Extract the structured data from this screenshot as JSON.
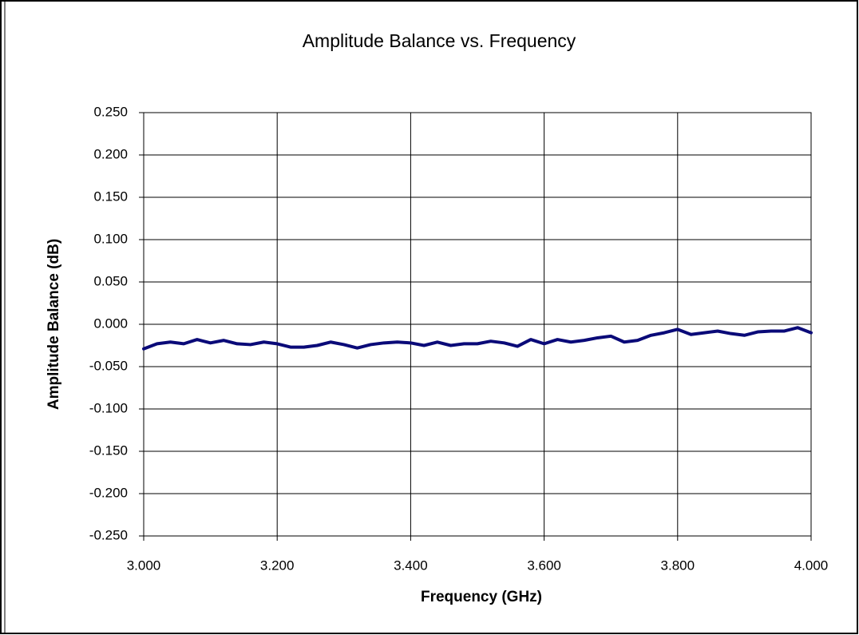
{
  "chart_data": {
    "type": "line",
    "title": "Amplitude Balance vs. Frequency",
    "x_label": "Frequency (GHz)",
    "y_label": "Amplitude Balance (dB)",
    "x": [
      3.0,
      3.02,
      3.04,
      3.06,
      3.08,
      3.1,
      3.12,
      3.14,
      3.16,
      3.18,
      3.2,
      3.22,
      3.24,
      3.26,
      3.28,
      3.3,
      3.32,
      3.34,
      3.36,
      3.38,
      3.4,
      3.42,
      3.44,
      3.46,
      3.48,
      3.5,
      3.52,
      3.54,
      3.56,
      3.58,
      3.6,
      3.62,
      3.64,
      3.66,
      3.68,
      3.7,
      3.72,
      3.74,
      3.76,
      3.78,
      3.8,
      3.82,
      3.84,
      3.86,
      3.88,
      3.9,
      3.92,
      3.94,
      3.96,
      3.98,
      4.0
    ],
    "series": [
      {
        "name": "Amplitude Balance",
        "color": "#0a0a78",
        "values": [
          -0.029,
          -0.023,
          -0.021,
          -0.023,
          -0.018,
          -0.022,
          -0.019,
          -0.023,
          -0.024,
          -0.021,
          -0.023,
          -0.027,
          -0.027,
          -0.025,
          -0.021,
          -0.024,
          -0.028,
          -0.024,
          -0.022,
          -0.021,
          -0.022,
          -0.025,
          -0.021,
          -0.025,
          -0.023,
          -0.023,
          -0.02,
          -0.022,
          -0.026,
          -0.018,
          -0.023,
          -0.018,
          -0.021,
          -0.019,
          -0.016,
          -0.014,
          -0.021,
          -0.019,
          -0.013,
          -0.01,
          -0.006,
          -0.012,
          -0.01,
          -0.008,
          -0.011,
          -0.013,
          -0.009,
          -0.008,
          -0.008,
          -0.004,
          -0.01
        ]
      }
    ],
    "xlim": [
      3.0,
      4.0
    ],
    "xticks": [
      {
        "value": 3.0,
        "label": "3.000"
      },
      {
        "value": 3.2,
        "label": "3.200"
      },
      {
        "value": 3.4,
        "label": "3.400"
      },
      {
        "value": 3.6,
        "label": "3.600"
      },
      {
        "value": 3.8,
        "label": "3.800"
      },
      {
        "value": 4.0,
        "label": "4.000"
      }
    ],
    "ylim": [
      -0.25,
      0.25
    ],
    "yticks": [
      {
        "value": 0.25,
        "label": "0.250"
      },
      {
        "value": 0.2,
        "label": "0.200"
      },
      {
        "value": 0.15,
        "label": "0.150"
      },
      {
        "value": 0.1,
        "label": "0.100"
      },
      {
        "value": 0.05,
        "label": "0.050"
      },
      {
        "value": 0,
        "label": "0.000"
      },
      {
        "value": -0.05,
        "label": "-0.050"
      },
      {
        "value": -0.1,
        "label": "-0.100"
      },
      {
        "value": -0.15,
        "label": "-0.150"
      },
      {
        "value": -0.2,
        "label": "-0.200"
      },
      {
        "value": -0.25,
        "label": "-0.250"
      }
    ],
    "grid": true
  }
}
